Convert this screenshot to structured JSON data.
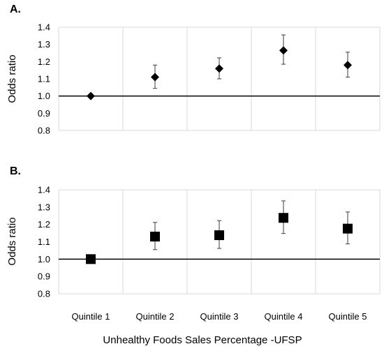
{
  "chart_data": [
    {
      "type": "scatter",
      "panel_label": "A.",
      "marker": "diamond",
      "categories": [
        "Quintile 1",
        "Quintile 2",
        "Quintile 3",
        "Quintile 4",
        "Quintile 5"
      ],
      "values": [
        1.0,
        1.11,
        1.16,
        1.265,
        1.18
      ],
      "ci_low": [
        1.0,
        1.045,
        1.1,
        1.185,
        1.11
      ],
      "ci_high": [
        1.0,
        1.18,
        1.222,
        1.355,
        1.255
      ],
      "ylabel": "Odds ratio",
      "ylim": [
        0.8,
        1.4
      ],
      "yticks": [
        "0.8",
        "0.9",
        "1.0",
        "1.1",
        "1.2",
        "1.3",
        "1.4"
      ],
      "reference_line": 1.0,
      "grid": "vertical"
    },
    {
      "type": "scatter",
      "panel_label": "B.",
      "marker": "square",
      "categories": [
        "Quintile 1",
        "Quintile 2",
        "Quintile 3",
        "Quintile 4",
        "Quintile 5"
      ],
      "values": [
        1.0,
        1.13,
        1.138,
        1.238,
        1.176
      ],
      "ci_low": [
        1.0,
        1.055,
        1.062,
        1.148,
        1.088
      ],
      "ci_high": [
        1.0,
        1.212,
        1.222,
        1.336,
        1.272
      ],
      "ylabel": "Odds ratio",
      "ylim": [
        0.8,
        1.4
      ],
      "yticks": [
        "0.8",
        "0.9",
        "1.0",
        "1.1",
        "1.2",
        "1.3",
        "1.4"
      ],
      "reference_line": 1.0,
      "grid": "vertical"
    }
  ],
  "xlabel": "Unhealthy Foods Sales Percentage -UFSP",
  "colors": {
    "marker": "#000000",
    "grid": "#d9d9d9",
    "errorbar": "#595959",
    "reference": "#000000"
  }
}
